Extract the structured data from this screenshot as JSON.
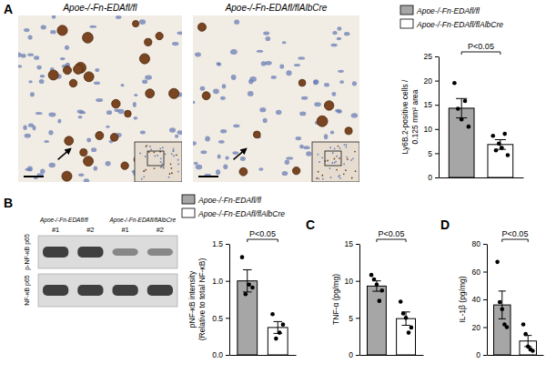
{
  "figure": {
    "panel_labels": [
      "A",
      "B",
      "C",
      "D"
    ],
    "micrographs": [
      {
        "title": "Apoe-/-Fn-EDAfl/fl"
      },
      {
        "title": "Apoe-/-Fn-EDAfl/flAlbCre"
      }
    ],
    "blot": {
      "groups": [
        "Apoe-/-Fn-EDAfl/fl",
        "Apoe-/-Fn-EDAfl/flAlbCre"
      ],
      "lanes": [
        "#1",
        "#2",
        "#1",
        "#2"
      ],
      "rows": [
        "p-NF-κB p65",
        "NF-κB p65"
      ]
    }
  },
  "chart_data": [
    {
      "type": "bar",
      "categories": [
        null
      ],
      "y_label": [
        "Ly6B.2-positive cells /",
        "0.125 mm² area"
      ],
      "ylim": [
        0,
        25
      ],
      "yticks": [
        0,
        5,
        10,
        15,
        20,
        25
      ],
      "annotation": "P<0.05",
      "legend": "top",
      "series": [
        {
          "name": "Apoe-/-Fn-EDAfl/fl",
          "color": "#a6a6a6",
          "values": [
            14.3
          ],
          "errors": [
            2.0
          ],
          "points": [
            [
              19.5,
              14.2,
              12.0,
              15.8,
              10.5
            ]
          ]
        },
        {
          "name": "Apoe-/-Fn-EDAfl/flAlbCre",
          "color": "#ffffff",
          "values": [
            6.8
          ],
          "errors": [
            1.0
          ],
          "points": [
            [
              8.6,
              5.6,
              7.0,
              6.1,
              9.0,
              4.6
            ]
          ]
        }
      ]
    },
    {
      "type": "bar",
      "categories": [
        null
      ],
      "y_label": [
        "pNF-κB intensity",
        "(Relative to total NF-κB)"
      ],
      "ylim": [
        0,
        1.5
      ],
      "yticks": [
        {
          "value": 0,
          "label": "0.0"
        },
        {
          "value": 0.5,
          "label": "0.5"
        },
        {
          "value": 1,
          "label": "1.0"
        },
        {
          "value": 1.5,
          "label": "1.5"
        }
      ],
      "annotation": "P<0.05",
      "legend": "top",
      "series": [
        {
          "name": "Apoe-/-Fn-EDAfl/fl",
          "color": "#a6a6a6",
          "values": [
            1.0
          ],
          "errors": [
            0.15
          ],
          "points": [
            [
              1.32,
              0.82,
              0.95,
              0.91
            ]
          ]
        },
        {
          "name": "Apoe-/-Fn-EDAfl/flAlbCre",
          "color": "#ffffff",
          "values": [
            0.37
          ],
          "errors": [
            0.08
          ],
          "points": [
            [
              0.55,
              0.22,
              0.3,
              0.41
            ]
          ]
        }
      ]
    },
    {
      "type": "bar",
      "categories": [
        null
      ],
      "y_label": [
        "TNF-α (pg/mg)"
      ],
      "ylim": [
        0,
        15
      ],
      "yticks": [
        0,
        5,
        10,
        15
      ],
      "annotation": "P<0.05",
      "series": [
        {
          "color": "#a6a6a6",
          "values": [
            9.3
          ],
          "errors": [
            0.7
          ],
          "points": [
            [
              10.8,
              10.2,
              9.5,
              7.3,
              8.7
            ]
          ]
        },
        {
          "color": "#ffffff",
          "values": [
            4.9
          ],
          "errors": [
            0.9
          ],
          "points": [
            [
              7.2,
              5.6,
              5.0,
              3.0,
              3.7
            ]
          ]
        }
      ]
    },
    {
      "type": "bar",
      "categories": [
        null
      ],
      "y_label": [
        "IL-1β (pg/mg)"
      ],
      "ylim": [
        0,
        80
      ],
      "yticks": [
        0,
        20,
        40,
        60,
        80
      ],
      "annotation": "P<0.05",
      "series": [
        {
          "color": "#a6a6a6",
          "values": [
            36
          ],
          "errors": [
            10
          ],
          "points": [
            [
              67,
              38,
              33,
              22,
              20
            ]
          ]
        },
        {
          "color": "#ffffff",
          "values": [
            10
          ],
          "errors": [
            4
          ],
          "points": [
            [
              22,
              15,
              6,
              4,
              3
            ]
          ]
        }
      ]
    }
  ]
}
